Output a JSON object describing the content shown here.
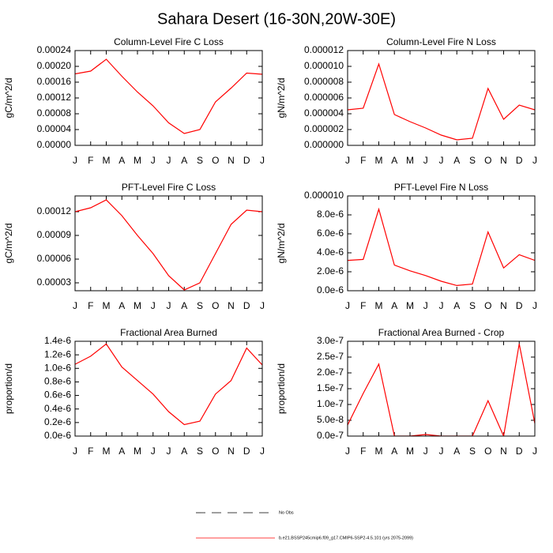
{
  "title": "Sahara Desert (16-30N,20W-30E)",
  "chart_data": [
    {
      "type": "line",
      "title": "Column-Level Fire C Loss",
      "ylabel": "gC/m^2/d",
      "categories": [
        "J",
        "F",
        "M",
        "A",
        "M",
        "J",
        "J",
        "A",
        "S",
        "O",
        "N",
        "D",
        "J"
      ],
      "values": [
        0.000181,
        0.000188,
        0.000218,
        0.000175,
        0.000135,
        0.0001,
        5.7e-05,
        3e-05,
        4e-05,
        0.00011,
        0.000145,
        0.000183,
        0.00018
      ],
      "color": "#ff0000",
      "ylim": [
        0,
        0.00024
      ],
      "yticks": [
        {
          "value": 0,
          "label": "0.00000"
        },
        {
          "value": 4e-05,
          "label": "0.00004"
        },
        {
          "value": 8e-05,
          "label": "0.00008"
        },
        {
          "value": 0.00012,
          "label": "0.00012"
        },
        {
          "value": 0.00016,
          "label": "0.00016"
        },
        {
          "value": 0.0002,
          "label": "0.00020"
        },
        {
          "value": 0.00024,
          "label": "0.00024"
        }
      ]
    },
    {
      "type": "line",
      "title": "Column-Level Fire N Loss",
      "ylabel": "gN/m^2/d",
      "categories": [
        "J",
        "F",
        "M",
        "A",
        "M",
        "J",
        "J",
        "A",
        "S",
        "O",
        "N",
        "D",
        "J"
      ],
      "values": [
        4.5e-06,
        4.7e-06,
        1.03e-05,
        3.9e-06,
        3e-06,
        2.2e-06,
        1.3e-06,
        7e-07,
        9e-07,
        7.2e-06,
        3.3e-06,
        5.1e-06,
        4.5e-06
      ],
      "color": "#ff0000",
      "ylim": [
        0,
        1.2e-05
      ],
      "yticks": [
        {
          "value": 0,
          "label": "0.000000"
        },
        {
          "value": 2e-06,
          "label": "0.000002"
        },
        {
          "value": 4e-06,
          "label": "0.000004"
        },
        {
          "value": 6e-06,
          "label": "0.000006"
        },
        {
          "value": 8e-06,
          "label": "0.000008"
        },
        {
          "value": 1e-05,
          "label": "0.000010"
        },
        {
          "value": 1.2e-05,
          "label": "0.000012"
        }
      ]
    },
    {
      "type": "line",
      "title": "PFT-Level Fire C Loss",
      "ylabel": "gC/m^2/d",
      "categories": [
        "J",
        "F",
        "M",
        "A",
        "M",
        "J",
        "J",
        "A",
        "S",
        "O",
        "N",
        "D",
        "J"
      ],
      "values": [
        0.00012,
        0.000125,
        0.000135,
        0.000115,
        9e-05,
        6.7e-05,
        3.9e-05,
        2.1e-05,
        3e-05,
        6.7e-05,
        0.000104,
        0.000122,
        0.00012
      ],
      "color": "#ff0000",
      "ylim": [
        2e-05,
        0.00014
      ],
      "yticks": [
        {
          "value": 3e-05,
          "label": "0.00003"
        },
        {
          "value": 6e-05,
          "label": "0.00006"
        },
        {
          "value": 9e-05,
          "label": "0.00009"
        },
        {
          "value": 0.00012,
          "label": "0.00012"
        }
      ]
    },
    {
      "type": "line",
      "title": "PFT-Level Fire N Loss",
      "ylabel": "gN/m^2/d",
      "categories": [
        "J",
        "F",
        "M",
        "A",
        "M",
        "J",
        "J",
        "A",
        "S",
        "O",
        "N",
        "D",
        "J"
      ],
      "values": [
        3.2e-06,
        3.3e-06,
        8.6e-06,
        2.7e-06,
        2.1e-06,
        1.6e-06,
        1e-06,
        5.5e-07,
        7e-07,
        6.2e-06,
        2.4e-06,
        3.8e-06,
        3.2e-06
      ],
      "color": "#ff0000",
      "ylim": [
        0,
        1e-05
      ],
      "yticks": [
        {
          "value": 0,
          "label": "0.0e-6"
        },
        {
          "value": 2e-06,
          "label": "2.0e-6"
        },
        {
          "value": 4e-06,
          "label": "4.0e-6"
        },
        {
          "value": 6e-06,
          "label": "6.0e-6"
        },
        {
          "value": 8e-06,
          "label": "8.0e-6"
        },
        {
          "value": 1e-05,
          "label": "0.000010"
        }
      ]
    },
    {
      "type": "line",
      "title": "Fractional Area Burned",
      "ylabel": "proportion/d",
      "categories": [
        "J",
        "F",
        "M",
        "A",
        "M",
        "J",
        "J",
        "A",
        "S",
        "O",
        "N",
        "D",
        "J"
      ],
      "values": [
        1.06e-06,
        1.18e-06,
        1.36e-06,
        1.02e-06,
        8.2e-07,
        6.2e-07,
        3.6e-07,
        1.7e-07,
        2.2e-07,
        6.2e-07,
        8.2e-07,
        1.3e-06,
        1.05e-06
      ],
      "color": "#ff0000",
      "ylim": [
        0,
        1.4e-06
      ],
      "yticks": [
        {
          "value": 0,
          "label": "0.0e-6"
        },
        {
          "value": 2e-07,
          "label": "0.2e-6"
        },
        {
          "value": 4e-07,
          "label": "0.4e-6"
        },
        {
          "value": 6e-07,
          "label": "0.6e-6"
        },
        {
          "value": 8e-07,
          "label": "0.8e-6"
        },
        {
          "value": 1e-06,
          "label": "1.0e-6"
        },
        {
          "value": 1.2e-06,
          "label": "1.2e-6"
        },
        {
          "value": 1.4e-06,
          "label": "1.4e-6"
        }
      ]
    },
    {
      "type": "line",
      "title": "Fractional Area Burned - Crop",
      "ylabel": "proportion/d",
      "categories": [
        "J",
        "F",
        "M",
        "A",
        "M",
        "J",
        "J",
        "A",
        "S",
        "O",
        "N",
        "D",
        "J"
      ],
      "values": [
        3.5e-08,
        1.35e-07,
        2.28e-07,
        0,
        0,
        5e-09,
        0,
        0,
        0,
        1.12e-07,
        0,
        2.92e-07,
        4e-08
      ],
      "color": "#ff0000",
      "ylim": [
        0,
        3e-07
      ],
      "yticks": [
        {
          "value": 0,
          "label": "0.0e-7"
        },
        {
          "value": 5e-08,
          "label": "5.0e-8"
        },
        {
          "value": 1e-07,
          "label": "1.0e-7"
        },
        {
          "value": 1.5e-07,
          "label": "1.5e-7"
        },
        {
          "value": 2e-07,
          "label": "2.0e-7"
        },
        {
          "value": 2.5e-07,
          "label": "2.5e-7"
        },
        {
          "value": 3e-07,
          "label": "3.0e-7"
        }
      ]
    }
  ],
  "legend": [
    {
      "label": "No Obs",
      "color": "#000000",
      "dashed": true
    },
    {
      "label": "b.e21.BSSP245cmip6.f09_g17.CMIP6-SSP2-4.5.101 (yrs 2075-2099)",
      "color": "#ff0000",
      "dashed": false
    }
  ]
}
